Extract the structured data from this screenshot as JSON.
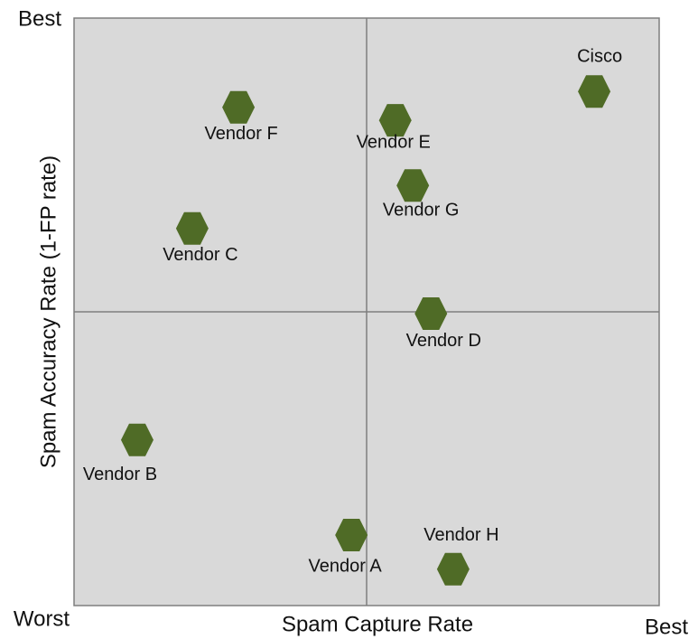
{
  "chart_data": {
    "type": "scatter",
    "x_label": "Spam Capture Rate",
    "y_label": "Spam Accuracy Rate (1-FP rate)",
    "corner_labels": {
      "y_best": "Best",
      "origin": "Worst",
      "x_best": "Best"
    },
    "xlim": [
      0,
      100
    ],
    "ylim": [
      0,
      100
    ],
    "dividers": {
      "x": 50,
      "y": 50
    },
    "color": "#4f6b26",
    "points": [
      {
        "name": "Cisco",
        "x": 88.9,
        "y": 87.5
      },
      {
        "name": "Vendor F",
        "x": 28.1,
        "y": 84.8
      },
      {
        "name": "Vendor E",
        "x": 54.9,
        "y": 82.6
      },
      {
        "name": "Vendor G",
        "x": 57.9,
        "y": 71.5
      },
      {
        "name": "Vendor C",
        "x": 20.2,
        "y": 64.2
      },
      {
        "name": "Vendor D",
        "x": 61.0,
        "y": 49.7
      },
      {
        "name": "Vendor B",
        "x": 10.8,
        "y": 28.2
      },
      {
        "name": "Vendor A",
        "x": 47.4,
        "y": 12.0
      },
      {
        "name": "Vendor H",
        "x": 64.8,
        "y": 6.2
      }
    ]
  }
}
